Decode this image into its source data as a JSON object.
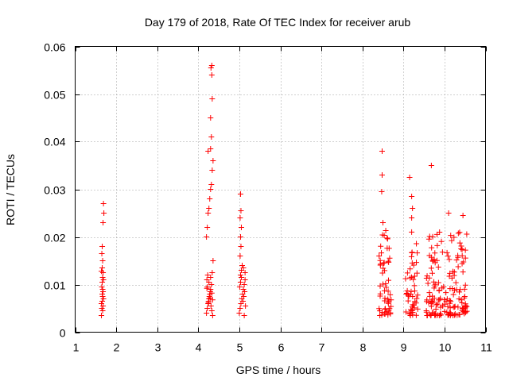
{
  "chart_data": {
    "type": "scatter",
    "title": "Day 179 of 2018, Rate Of TEC Index for receiver arub",
    "xlabel": "GPS time / hours",
    "ylabel": "ROTI / TECUs",
    "xlim": [
      1,
      11
    ],
    "ylim": [
      0,
      0.06
    ],
    "x_ticks": [
      1,
      2,
      3,
      4,
      5,
      6,
      7,
      8,
      9,
      10,
      11
    ],
    "y_ticks": [
      0,
      0.01,
      0.02,
      0.03,
      0.04,
      0.05,
      0.06
    ],
    "x_tick_labels": [
      "1",
      "2",
      "3",
      "4",
      "5",
      "6",
      "7",
      "8",
      "9",
      "10",
      "11"
    ],
    "y_tick_labels": [
      "0",
      "0.01",
      "0.02",
      "0.03",
      "0.04",
      "0.05",
      "0.06"
    ],
    "grid": true,
    "marker": "+",
    "series": [
      {
        "name": "ROTI",
        "color": "#ff0000",
        "points": [
          [
            1.64,
            0.0035
          ],
          [
            1.65,
            0.005
          ],
          [
            1.66,
            0.0065
          ],
          [
            1.67,
            0.0075
          ],
          [
            1.68,
            0.0085
          ],
          [
            1.65,
            0.0095
          ],
          [
            1.66,
            0.0105
          ],
          [
            1.67,
            0.0115
          ],
          [
            1.68,
            0.0125
          ],
          [
            1.66,
            0.0135
          ],
          [
            1.67,
            0.015
          ],
          [
            1.65,
            0.0165
          ],
          [
            1.66,
            0.018
          ],
          [
            1.68,
            0.023
          ],
          [
            1.7,
            0.025
          ],
          [
            1.69,
            0.027
          ],
          [
            1.67,
            0.0045
          ],
          [
            1.68,
            0.0055
          ],
          [
            1.64,
            0.006
          ],
          [
            1.69,
            0.007
          ],
          [
            1.66,
            0.008
          ],
          [
            1.67,
            0.009
          ],
          [
            1.69,
            0.011
          ],
          [
            1.64,
            0.0128
          ],
          [
            4.2,
            0.004
          ],
          [
            4.22,
            0.005
          ],
          [
            4.24,
            0.006
          ],
          [
            4.26,
            0.007
          ],
          [
            4.28,
            0.008
          ],
          [
            4.3,
            0.009
          ],
          [
            4.32,
            0.01
          ],
          [
            4.21,
            0.011
          ],
          [
            4.23,
            0.012
          ],
          [
            4.25,
            0.0065
          ],
          [
            4.27,
            0.0075
          ],
          [
            4.29,
            0.0085
          ],
          [
            4.31,
            0.0055
          ],
          [
            4.33,
            0.0045
          ],
          [
            4.35,
            0.0035
          ],
          [
            4.22,
            0.0095
          ],
          [
            4.26,
            0.0105
          ],
          [
            4.3,
            0.0115
          ],
          [
            4.34,
            0.0125
          ],
          [
            4.36,
            0.015
          ],
          [
            4.2,
            0.02
          ],
          [
            4.22,
            0.022
          ],
          [
            4.24,
            0.025
          ],
          [
            4.26,
            0.026
          ],
          [
            4.28,
            0.028
          ],
          [
            4.3,
            0.03
          ],
          [
            4.32,
            0.031
          ],
          [
            4.34,
            0.034
          ],
          [
            4.36,
            0.036
          ],
          [
            4.24,
            0.038
          ],
          [
            4.3,
            0.0385
          ],
          [
            4.32,
            0.041
          ],
          [
            4.3,
            0.045
          ],
          [
            4.34,
            0.049
          ],
          [
            4.33,
            0.054
          ],
          [
            4.31,
            0.0555
          ],
          [
            4.33,
            0.056
          ],
          [
            4.25,
            0.0062
          ],
          [
            4.29,
            0.0072
          ],
          [
            4.33,
            0.0082
          ],
          [
            4.21,
            0.0092
          ],
          [
            4.35,
            0.0068
          ],
          [
            5.0,
            0.004
          ],
          [
            5.02,
            0.005
          ],
          [
            5.04,
            0.006
          ],
          [
            5.06,
            0.007
          ],
          [
            5.08,
            0.008
          ],
          [
            5.1,
            0.009
          ],
          [
            5.12,
            0.01
          ],
          [
            5.14,
            0.011
          ],
          [
            5.03,
            0.012
          ],
          [
            5.05,
            0.013
          ],
          [
            5.07,
            0.014
          ],
          [
            5.09,
            0.0065
          ],
          [
            5.11,
            0.0075
          ],
          [
            5.13,
            0.0085
          ],
          [
            5.15,
            0.0055
          ],
          [
            5.01,
            0.0095
          ],
          [
            5.03,
            0.0105
          ],
          [
            5.05,
            0.0115
          ],
          [
            5.02,
            0.016
          ],
          [
            5.04,
            0.018
          ],
          [
            5.03,
            0.02
          ],
          [
            5.05,
            0.022
          ],
          [
            5.02,
            0.024
          ],
          [
            5.04,
            0.0255
          ],
          [
            5.03,
            0.029
          ],
          [
            5.12,
            0.0035
          ],
          [
            5.14,
            0.0125
          ],
          [
            5.1,
            0.0135
          ]
        ]
      }
    ],
    "cluster_right": {
      "x_range": [
        8.4,
        10.55
      ],
      "y_range": [
        0.003,
        0.038
      ]
    }
  }
}
